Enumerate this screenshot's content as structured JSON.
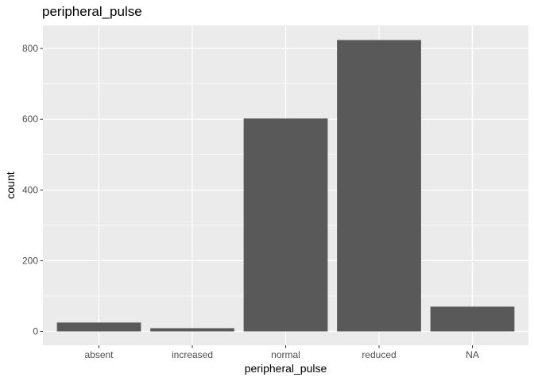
{
  "chart_data": {
    "type": "bar",
    "title": "peripheral_pulse",
    "xlabel": "peripheral_pulse",
    "ylabel": "count",
    "categories": [
      "absent",
      "increased",
      "normal",
      "reduced",
      "NA"
    ],
    "values": [
      25,
      9,
      602,
      824,
      70
    ],
    "ylim": [
      0,
      860
    ],
    "yticks": [
      0,
      200,
      400,
      600,
      800
    ],
    "grid": true,
    "bar_color": "#595959",
    "panel_background": "#ebebeb",
    "gridline_color": "#ffffff"
  }
}
